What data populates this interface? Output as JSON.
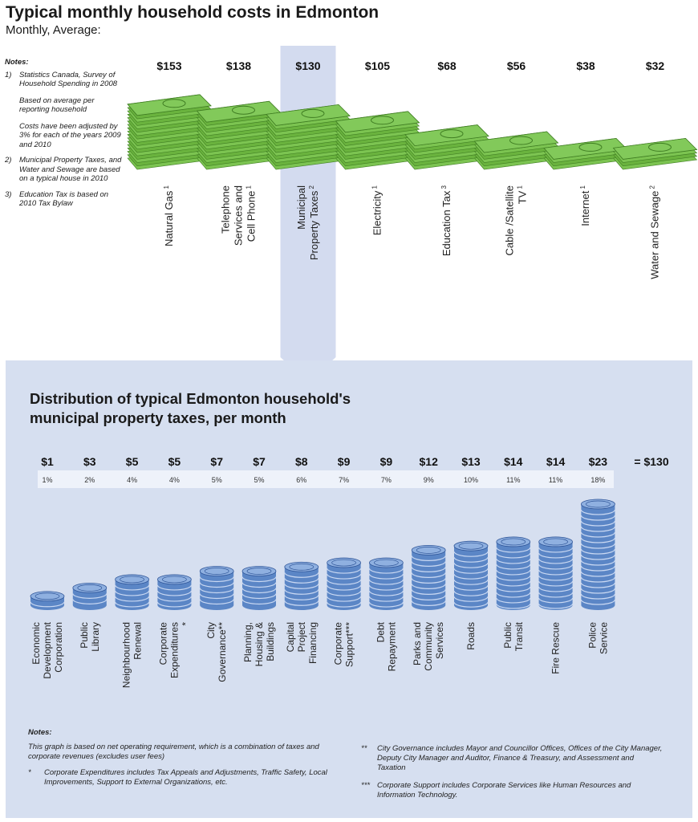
{
  "header": {
    "title": "Typical monthly household costs in Edmonton",
    "subtitle": "Monthly, Average:"
  },
  "notes": {
    "heading": "Notes:",
    "n1_num": "1)",
    "n1_a": "Statistics Canada, Survey of Household Spending in 2008",
    "n1_b": "Based on average per reporting household",
    "n1_c": "Costs have been adjusted by 3% for each of the years 2009 and 2010",
    "n2_num": "2)",
    "n2": "Municipal Property Taxes, and Water and Sewage are based on a typical house in 2010",
    "n3_num": "3)",
    "n3": "Education Tax is based on 2010 Tax Bylaw"
  },
  "colors": {
    "money_green": "#6ab33e",
    "money_dark": "#3f7d22",
    "coin_blue": "#5b86c6",
    "coin_dark": "#2f5598",
    "panel_blue": "#d6dff0",
    "highlight_blue": "#d3dbef"
  },
  "chart_data": [
    {
      "type": "bar",
      "title": "Typical monthly household costs in Edmonton",
      "subtitle": "Monthly, Average:",
      "unit": "$ per month",
      "categories": [
        {
          "label": "Natural Gas",
          "sup": "1"
        },
        {
          "label": "Telephone Services and Cell Phone",
          "sup": "1"
        },
        {
          "label": "Municipal Property Taxes",
          "sup": "2"
        },
        {
          "label": "Electricity",
          "sup": "1"
        },
        {
          "label": "Education Tax",
          "sup": "3"
        },
        {
          "label": "Cable /Satellite TV",
          "sup": "1"
        },
        {
          "label": "Internet",
          "sup": "1"
        },
        {
          "label": "Water and Sewage",
          "sup": "2"
        }
      ],
      "value_labels": [
        "$153",
        "$138",
        "$130",
        "$105",
        "$68",
        "$56",
        "$38",
        "$32"
      ],
      "values": [
        153,
        138,
        130,
        105,
        68,
        56,
        38,
        32
      ],
      "highlighted_category": "Municipal Property Taxes"
    },
    {
      "type": "bar",
      "title": "Distribution of typical Edmonton household's municipal property taxes, per month",
      "total_label": "= $130",
      "total": 130,
      "categories": [
        "Economic Development Corporation",
        "Public Library",
        "Neighbourhood Renewal",
        "Corporate Expenditures *",
        "City Governance**",
        "Planning, Housing & Buildings",
        "Capital Project Financing",
        "Corporate Support***",
        "Debt Repayment",
        "Parks and Community Services",
        "Roads",
        "Public Transit",
        "Fire Rescue",
        "Police Service"
      ],
      "value_labels": [
        "$1",
        "$3",
        "$5",
        "$5",
        "$7",
        "$7",
        "$8",
        "$9",
        "$9",
        "$12",
        "$13",
        "$14",
        "$14",
        "$23"
      ],
      "values": [
        1,
        3,
        5,
        5,
        7,
        7,
        8,
        9,
        9,
        12,
        13,
        14,
        14,
        23
      ],
      "percent_labels": [
        "1%",
        "2%",
        "4%",
        "4%",
        "5%",
        "5%",
        "6%",
        "7%",
        "7%",
        "9%",
        "10%",
        "11%",
        "11%",
        "18%"
      ],
      "percents": [
        1,
        2,
        4,
        4,
        5,
        5,
        6,
        7,
        7,
        9,
        10,
        11,
        11,
        18
      ]
    }
  ],
  "bottom_notes": {
    "heading": "Notes:",
    "main": "This graph is based on net operating requirement, which is a combination of taxes and corporate revenues (excludes user fees)",
    "star1_mark": "*",
    "star1": "Corporate Expenditures includes Tax Appeals and Adjustments, Traffic Safety, Local Improvements, Support to External Organizations, etc.",
    "star2_mark": "**",
    "star2": "City Governance includes Mayor and Councillor Offices, Offices of the City Manager, Deputy City Manager and Auditor, Finance & Treasury, and Assessment and Taxation",
    "star3_mark": "***",
    "star3": "Corporate Support includes Corporate Services like Human Resources and Information Technology."
  },
  "sub_title": {
    "line1": "Distribution of typical Edmonton household's",
    "line2": "municipal property taxes, per month"
  }
}
